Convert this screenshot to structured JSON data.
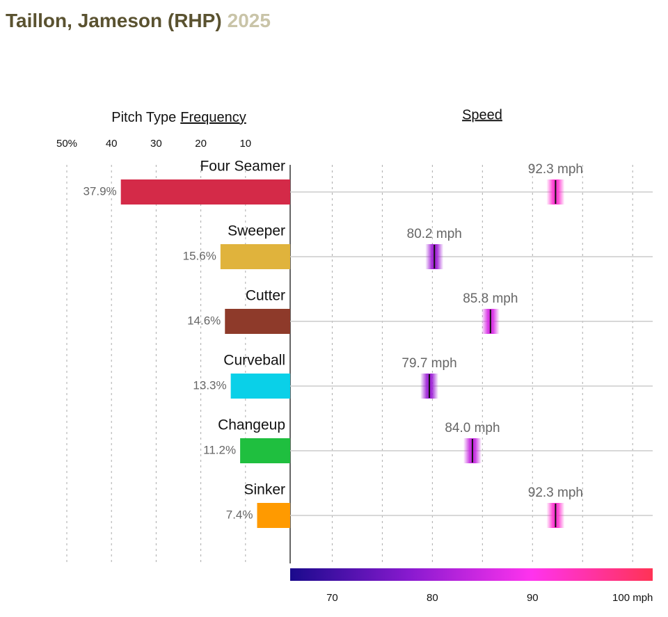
{
  "header": {
    "name": "Taillon, Jameson (RHP)",
    "season": "2025"
  },
  "chart_data": [
    {
      "type": "bar",
      "title_prefix": "Pitch Type",
      "title": "Frequency",
      "categories": [
        "Four Seamer",
        "Sweeper",
        "Cutter",
        "Curveball",
        "Changeup",
        "Sinker"
      ],
      "values": [
        37.9,
        15.6,
        14.6,
        13.3,
        11.2,
        7.4
      ],
      "value_labels": [
        "37.9%",
        "15.6%",
        "14.6%",
        "13.3%",
        "11.2%",
        "7.4%"
      ],
      "colors": [
        "#d42a48",
        "#e0b33c",
        "#8e3a2a",
        "#0ad0e8",
        "#1fbf3f",
        "#ff9a00"
      ],
      "xlim": [
        0,
        50
      ],
      "xticks": [
        {
          "value": 50,
          "label": "50%"
        },
        40,
        30,
        20,
        10
      ],
      "grid": true
    },
    {
      "type": "strip",
      "title": "Speed",
      "values": [
        92.3,
        80.2,
        85.8,
        79.7,
        84.0,
        92.3
      ],
      "value_labels": [
        "92.3 mph",
        "80.2 mph",
        "85.8 mph",
        "79.7 mph",
        "84.0 mph",
        "92.3 mph"
      ],
      "xlim": [
        65.8,
        102
      ],
      "xticks": [
        70,
        80,
        90,
        {
          "value": 100,
          "label": "100 mph"
        }
      ],
      "minor_xticks": [
        75,
        85,
        95
      ],
      "colorscale": [
        "#1a0a8c",
        "#8a1ad0",
        "#ff33ee",
        "#ff3355"
      ],
      "grid": true
    }
  ]
}
